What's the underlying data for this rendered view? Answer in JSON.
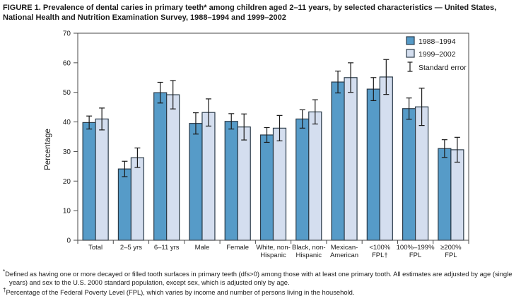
{
  "figure": {
    "title": "FIGURE 1. Prevalence of dental caries in primary teeth* among children aged 2–11 years, by selected characteristics — United States, National Health and Nutrition Examination Survey, 1988–1994 and 1999–2002"
  },
  "chart_data": {
    "type": "bar",
    "title": "Prevalence of dental caries in primary teeth among children aged 2–11 years",
    "xlabel": "",
    "ylabel": "Percentage",
    "ylim": [
      0,
      70
    ],
    "ytick_step": 10,
    "yticks": [
      0,
      10,
      20,
      30,
      40,
      50,
      60,
      70
    ],
    "grid": false,
    "legend_position": "top-right-inside",
    "error_bar_label": "Standard error",
    "categories": [
      [
        "Total"
      ],
      [
        "2–5 yrs"
      ],
      [
        "6–11 yrs"
      ],
      [
        "Male"
      ],
      [
        "Female"
      ],
      [
        "White, non-",
        "Hispanic"
      ],
      [
        "Black, non-",
        "Hispanic"
      ],
      [
        "Mexican-",
        "American"
      ],
      [
        "<100%",
        "FPL†"
      ],
      [
        "100%–199%",
        "FPL"
      ],
      [
        "≥200%",
        "FPL"
      ]
    ],
    "series": [
      {
        "name": "1988–1994",
        "color": "#569BC8",
        "values": [
          39.8,
          24.1,
          49.9,
          39.5,
          40.2,
          35.6,
          41.0,
          53.5,
          51.1,
          44.5,
          31.0
        ],
        "standard_errors": [
          2.2,
          2.6,
          3.5,
          3.6,
          2.6,
          2.5,
          3.1,
          3.7,
          3.9,
          3.6,
          3.0
        ]
      },
      {
        "name": "1999–2002",
        "color": "#D4DEEF",
        "values": [
          41.0,
          27.9,
          49.2,
          43.2,
          38.3,
          37.9,
          43.4,
          55.0,
          55.2,
          45.1,
          30.6
        ],
        "standard_errors": [
          3.7,
          3.3,
          4.8,
          4.6,
          4.4,
          4.3,
          4.1,
          5.0,
          5.9,
          6.3,
          4.2
        ]
      }
    ],
    "colors": {
      "bar_stroke": "#2B3B49",
      "error_bar": "#1a1a1a",
      "axis": "#4a4a4a",
      "text": "#1a1a1a"
    }
  },
  "footnotes": [
    {
      "marker": "*",
      "text": "Defined as having one or more decayed or filled tooth surfaces in primary teeth (dfs>0) among those with at least one primary tooth. All estimates are adjusted by age (single years) and sex to the U.S. 2000 standard population, except sex, which is adjusted only by age."
    },
    {
      "marker": "†",
      "text": "Percentage of the Federal Poverty Level (FPL), which varies by income and number of persons living in the household."
    }
  ]
}
